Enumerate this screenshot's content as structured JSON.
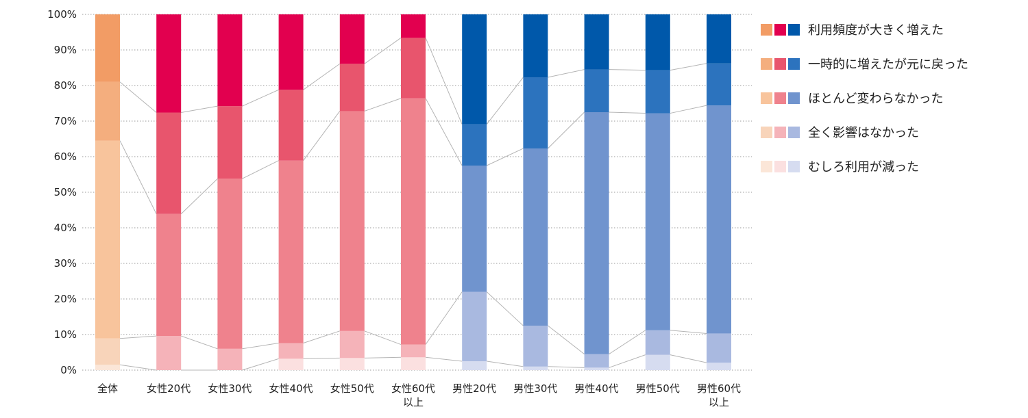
{
  "chart_data": {
    "type": "bar",
    "stacked": true,
    "categories": [
      [
        "全体"
      ],
      [
        "女性20代"
      ],
      [
        "女性30代"
      ],
      [
        "女性40代"
      ],
      [
        "女性50代"
      ],
      [
        "女性60代",
        "以上"
      ],
      [
        "男性20代"
      ],
      [
        "男性30代"
      ],
      [
        "男性40代"
      ],
      [
        "男性50代"
      ],
      [
        "男性60代",
        "以上"
      ]
    ],
    "groups": [
      "all",
      "female",
      "female",
      "female",
      "female",
      "female",
      "male",
      "male",
      "male",
      "male",
      "male"
    ],
    "series": [
      {
        "name": "むしろ利用が減った",
        "values": [
          1.5,
          0.0,
          0.0,
          3.2,
          3.4,
          3.6,
          2.5,
          1.0,
          0.7,
          4.3,
          2.1
        ]
      },
      {
        "name": "全く影響はなかった",
        "values": [
          7.4,
          9.6,
          6.0,
          4.4,
          7.6,
          3.6,
          19.5,
          11.5,
          3.8,
          6.9,
          8.2
        ]
      },
      {
        "name": "ほとんど変わらなかった",
        "values": [
          55.6,
          34.3,
          47.8,
          51.3,
          61.8,
          69.2,
          35.5,
          49.8,
          68.0,
          61.0,
          64.1
        ]
      },
      {
        "name": "一時的に増えたが元に戻った",
        "values": [
          16.5,
          28.5,
          20.4,
          19.9,
          13.3,
          17.0,
          11.6,
          20.0,
          12.0,
          12.1,
          11.8
        ]
      },
      {
        "name": "利用頻度が大きく増えた",
        "values": [
          19.0,
          27.6,
          25.8,
          21.2,
          13.9,
          6.6,
          30.9,
          17.7,
          15.5,
          15.7,
          13.8
        ]
      }
    ],
    "colors": {
      "all": [
        "#FBE6D8",
        "#F8D4BA",
        "#F8C49C",
        "#F4AE7E",
        "#F29C65"
      ],
      "female": [
        "#FBE0E0",
        "#F5B3B9",
        "#EF828D",
        "#E8556D",
        "#E2004F"
      ],
      "male": [
        "#D6DCF0",
        "#A9B9E0",
        "#7094CE",
        "#2C73BE",
        "#0058AA"
      ]
    },
    "yticks": [
      "0%",
      "10%",
      "20%",
      "30%",
      "40%",
      "50%",
      "60%",
      "70%",
      "80%",
      "90%",
      "100%"
    ],
    "ylim": [
      0,
      100
    ],
    "grid": true,
    "legend_position": "right",
    "legend": [
      "利用頻度が大きく増えた",
      "一時的に増えたが元に戻った",
      "ほとんど変わらなかった",
      "全く影響はなかった",
      "むしろ利用が減った"
    ]
  }
}
